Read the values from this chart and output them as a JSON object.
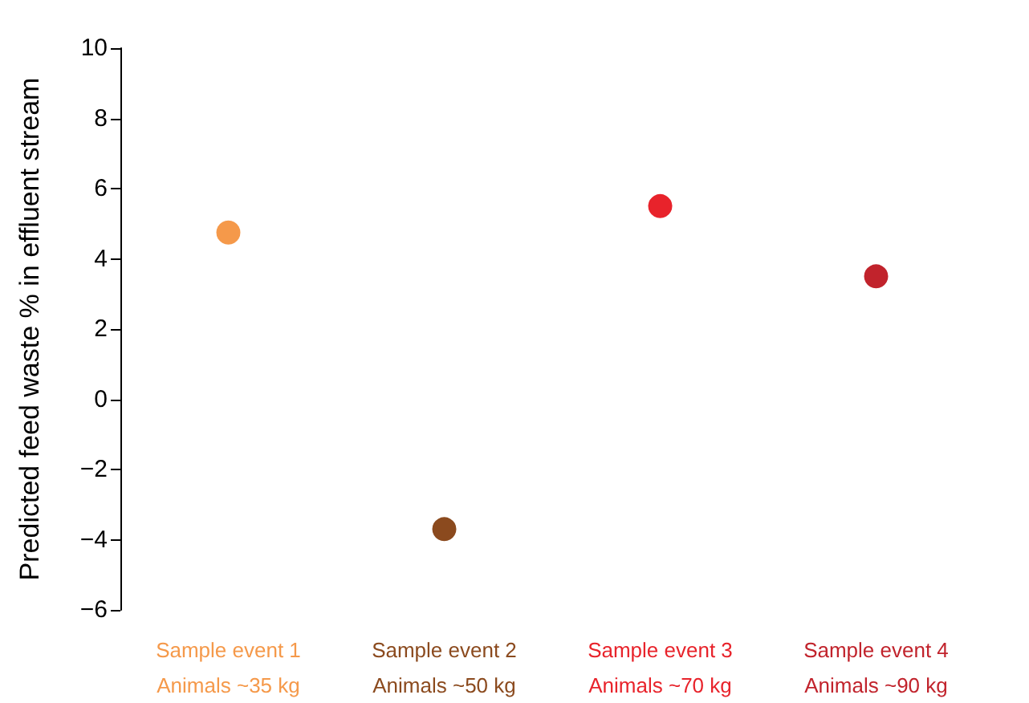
{
  "chart_data": {
    "type": "scatter",
    "ylabel": "Predicted feed waste % in effluent stream",
    "categories": [
      "Sample event 1\nAnimals ~35 kg",
      "Sample event 2\nAnimals ~50 kg",
      "Sample event 3\nAnimals ~70 kg",
      "Sample event 4\nAnimals ~90 kg"
    ],
    "values": [
      4.75,
      -3.7,
      5.5,
      3.5
    ],
    "colors": [
      "#f5994a",
      "#8b4a1e",
      "#e8232b",
      "#c1232c"
    ],
    "marker": "circle",
    "ylim": [
      -6,
      10
    ],
    "yticks": [
      {
        "value": -6,
        "label": "−6"
      },
      {
        "value": -4,
        "label": "−4"
      },
      {
        "value": -2,
        "label": "−2"
      },
      0,
      2,
      4,
      6,
      8,
      10
    ],
    "grid": false
  }
}
